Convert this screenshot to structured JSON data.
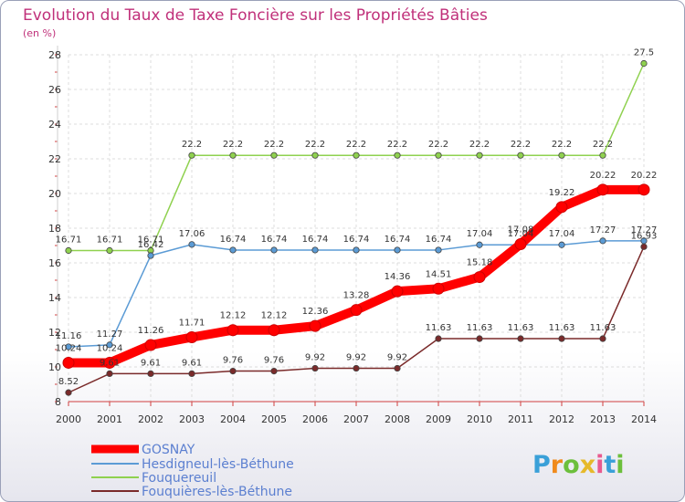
{
  "chart_data": {
    "type": "line",
    "title": "Evolution du Taux de Taxe Foncière sur les Propriétés Bâties",
    "subtitle": "(en %)",
    "xlabel": "",
    "ylabel": "",
    "x": [
      "2000",
      "2001",
      "2002",
      "2003",
      "2004",
      "2005",
      "2006",
      "2007",
      "2008",
      "2009",
      "2010",
      "2011",
      "2012",
      "2013",
      "2014"
    ],
    "ylim": [
      8,
      28
    ],
    "yticks": [
      "8",
      "10",
      "12",
      "14",
      "16",
      "18",
      "20",
      "22",
      "24",
      "26",
      "28"
    ],
    "grid": true,
    "legend_position": "bottom-left",
    "series": [
      {
        "name": "GOSNAY",
        "color": "#ff0000",
        "values": [
          10.24,
          10.24,
          11.26,
          11.71,
          12.12,
          12.12,
          12.36,
          13.28,
          14.36,
          14.51,
          15.18,
          17.08,
          19.22,
          20.22,
          20.22
        ],
        "labels": [
          "10.24",
          "10.24",
          "11.26",
          "11.71",
          "12.12",
          "12.12",
          "12.36",
          "13.28",
          "14.36",
          "14.51",
          "15.18",
          "17.08",
          "19.22",
          "20.22",
          "20.22"
        ]
      },
      {
        "name": "Hesdigneul-lès-Béthune",
        "color": "#5b9bd5",
        "values": [
          11.16,
          11.27,
          16.42,
          17.06,
          16.74,
          16.74,
          16.74,
          16.74,
          16.74,
          16.74,
          17.04,
          17.04,
          17.04,
          17.27,
          17.27
        ],
        "labels": [
          "11.16",
          "11.27",
          "16.42",
          "17.06",
          "16.74",
          "16.74",
          "16.74",
          "16.74",
          "16.74",
          "16.74",
          "17.04",
          "17.04",
          "17.04",
          "17.27",
          "17.27"
        ]
      },
      {
        "name": "Fouquereuil",
        "color": "#8fd14f",
        "values": [
          16.71,
          16.71,
          16.71,
          22.2,
          22.2,
          22.2,
          22.2,
          22.2,
          22.2,
          22.2,
          22.2,
          22.2,
          22.2,
          22.2,
          27.5
        ],
        "labels": [
          "16.71",
          "16.71",
          "16.71",
          "22.2",
          "22.2",
          "22.2",
          "22.2",
          "22.2",
          "22.2",
          "22.2",
          "22.2",
          "22.2",
          "22.2",
          "22.2",
          "27.5"
        ]
      },
      {
        "name": "Fouquières-lès-Béthune",
        "color": "#7a2a2a",
        "values": [
          8.52,
          9.61,
          9.61,
          9.61,
          9.76,
          9.76,
          9.92,
          9.92,
          9.92,
          11.63,
          11.63,
          11.63,
          11.63,
          11.63,
          16.93
        ],
        "labels": [
          "8.52",
          "9.61",
          "9.61",
          "9.61",
          "9.76",
          "9.76",
          "9.92",
          "9.92",
          "9.92",
          "11.63",
          "11.63",
          "11.63",
          "11.63",
          "11.63",
          "16.93"
        ]
      }
    ]
  },
  "brand": {
    "letters": [
      "P",
      "r",
      "o",
      "x",
      "i",
      "t",
      "i"
    ],
    "colors": [
      "#3aa0d8",
      "#f08a1c",
      "#6cbf3c",
      "#e6b92a",
      "#e85a8f",
      "#3aa0d8",
      "#6cbf3c"
    ]
  }
}
